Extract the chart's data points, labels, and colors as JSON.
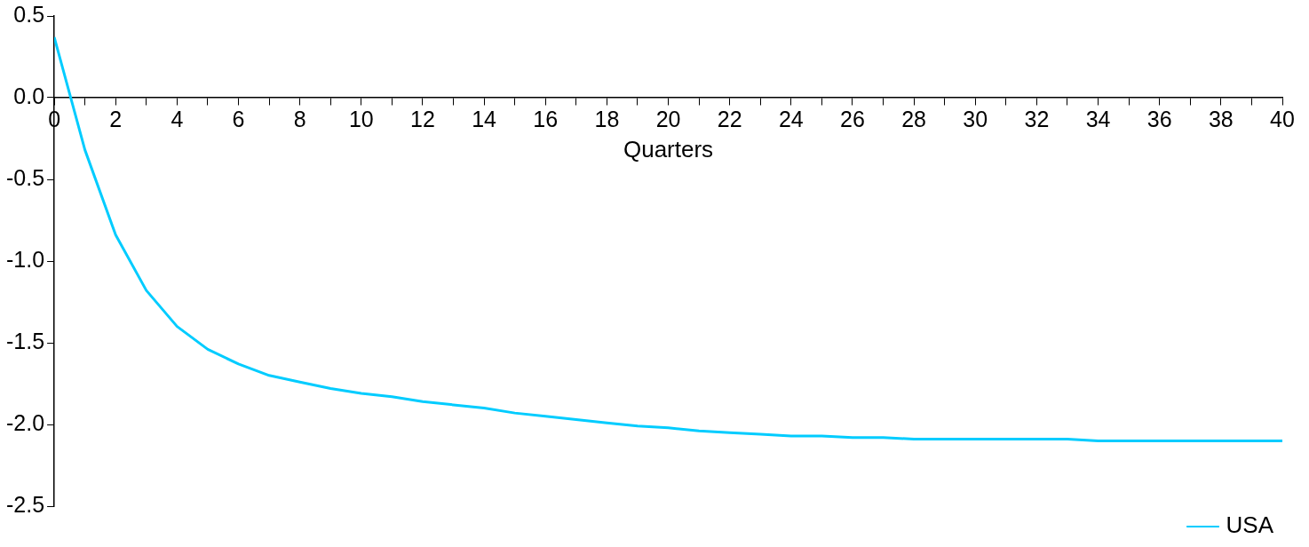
{
  "chart_data": {
    "type": "line",
    "xlabel": "Quarters",
    "x": [
      0,
      1,
      2,
      3,
      4,
      5,
      6,
      7,
      8,
      9,
      10,
      11,
      12,
      13,
      14,
      15,
      16,
      17,
      18,
      19,
      20,
      21,
      22,
      23,
      24,
      25,
      26,
      27,
      28,
      29,
      30,
      31,
      32,
      33,
      34,
      35,
      36,
      37,
      38,
      39,
      40
    ],
    "series": [
      {
        "name": "USA",
        "color": "#00ccff",
        "values": [
          0.37,
          -0.32,
          -0.84,
          -1.18,
          -1.4,
          -1.54,
          -1.63,
          -1.7,
          -1.74,
          -1.78,
          -1.81,
          -1.83,
          -1.86,
          -1.88,
          -1.9,
          -1.93,
          -1.95,
          -1.97,
          -1.99,
          -2.01,
          -2.02,
          -2.04,
          -2.05,
          -2.06,
          -2.07,
          -2.07,
          -2.08,
          -2.08,
          -2.09,
          -2.09,
          -2.09,
          -2.09,
          -2.09,
          -2.09,
          -2.1,
          -2.1,
          -2.1,
          -2.1,
          -2.1,
          -2.1,
          -2.1
        ]
      }
    ],
    "xlim": [
      0,
      40
    ],
    "xticks": [
      0,
      {
        "value": 1,
        "label": null
      },
      2,
      {
        "value": 3,
        "label": null
      },
      4,
      {
        "value": 5,
        "label": null
      },
      6,
      {
        "value": 7,
        "label": null
      },
      8,
      {
        "value": 9,
        "label": null
      },
      10,
      {
        "value": 11,
        "label": null
      },
      12,
      {
        "value": 13,
        "label": null
      },
      14,
      {
        "value": 15,
        "label": null
      },
      16,
      {
        "value": 17,
        "label": null
      },
      18,
      {
        "value": 19,
        "label": null
      },
      20,
      {
        "value": 21,
        "label": null
      },
      22,
      {
        "value": 23,
        "label": null
      },
      24,
      {
        "value": 25,
        "label": null
      },
      26,
      {
        "value": 27,
        "label": null
      },
      28,
      {
        "value": 29,
        "label": null
      },
      30,
      {
        "value": 31,
        "label": null
      },
      32,
      {
        "value": 33,
        "label": null
      },
      34,
      {
        "value": 35,
        "label": null
      },
      36,
      {
        "value": 37,
        "label": null
      },
      38,
      {
        "value": 39,
        "label": null
      },
      40
    ],
    "ylim": [
      -2.5,
      0.5
    ],
    "yticks": [
      {
        "value": -2.5,
        "label": "-2.5"
      },
      {
        "value": -2.0,
        "label": "-2.0"
      },
      {
        "value": -1.5,
        "label": "-1.5"
      },
      {
        "value": -1.0,
        "label": "-1.0"
      },
      {
        "value": -0.5,
        "label": "-0.5"
      },
      {
        "value": 0,
        "label": "0.0"
      },
      {
        "value": 0.5,
        "label": "0.5"
      }
    ],
    "grid": false,
    "legend": "bottom right",
    "line_style": "solid"
  }
}
